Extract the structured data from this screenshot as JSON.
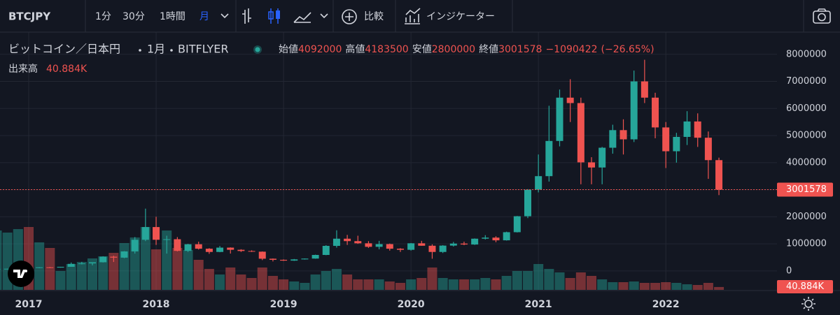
{
  "toolbar": {
    "symbol": "BTCJPY",
    "intervals": [
      "1分",
      "30分",
      "1時間",
      "月"
    ],
    "compare": "比較",
    "indicators": "インジケーター"
  },
  "chart_data": {
    "type": "candlestick",
    "symbol_name": "ビットコイン／日本円",
    "interval": "1月",
    "exchange": "BITFLYER",
    "ohlc_labels": [
      "始値",
      "高値",
      "安値",
      "終値"
    ],
    "change": "−1090422",
    "change_pct": "(−26.65%)",
    "categories": [
      null,
      null,
      null,
      "2017",
      null,
      null,
      null,
      null,
      null,
      null,
      null,
      null,
      null,
      null,
      null,
      "2018",
      null,
      null,
      null,
      null,
      null,
      null,
      null,
      null,
      null,
      null,
      null,
      "2019",
      null,
      null,
      null,
      null,
      null,
      null,
      null,
      null,
      null,
      null,
      null,
      "2020",
      null,
      null,
      null,
      null,
      null,
      null,
      null,
      null,
      null,
      null,
      null,
      "2021",
      null,
      null,
      null,
      null,
      null,
      null,
      null,
      null,
      null,
      null,
      null,
      "2022",
      null,
      null,
      null,
      null,
      null
    ],
    "open": [
      64000,
      75000,
      80000,
      110000,
      108000,
      134000,
      122000,
      152000,
      260000,
      277000,
      320000,
      525000,
      490000,
      720000,
      1150000,
      1620000,
      1150000,
      1170000,
      740000,
      985000,
      820000,
      700000,
      860000,
      780000,
      735000,
      710000,
      450000,
      410000,
      380000,
      425000,
      455000,
      590000,
      925000,
      1190000,
      1100000,
      1020000,
      890000,
      990000,
      820000,
      780000,
      1020000,
      930000,
      700000,
      935000,
      1010000,
      975000,
      1190000,
      1230000,
      1130000,
      1430000,
      2020000,
      3000000,
      3500000,
      4800000,
      6400000,
      6200000,
      4010000,
      3820000,
      4550000,
      5200000,
      4860000,
      7000000,
      6400000,
      5300000,
      4420000,
      4950000,
      5520000,
      4920000,
      4092000
    ],
    "high": [
      76000,
      82000,
      115000,
      130000,
      135000,
      145000,
      153000,
      310000,
      335000,
      320000,
      540000,
      560000,
      730000,
      1250000,
      2300000,
      2000000,
      1300000,
      1250000,
      1000000,
      1080000,
      840000,
      920000,
      870000,
      800000,
      760000,
      720000,
      460000,
      425000,
      440000,
      460000,
      600000,
      950000,
      1500000,
      1330000,
      1300000,
      1100000,
      1110000,
      1010000,
      840000,
      1030000,
      1110000,
      980000,
      950000,
      1070000,
      1080000,
      1200000,
      1320000,
      1280000,
      1450000,
      2030000,
      3020000,
      4300000,
      6100000,
      6700000,
      7080000,
      6400000,
      4200000,
      4580000,
      5400000,
      5600000,
      7400000,
      7800000,
      6580000,
      5500000,
      5100000,
      5900000,
      5820000,
      5150000,
      4183500
    ],
    "low": [
      63000,
      72000,
      79000,
      85000,
      103000,
      105000,
      120000,
      150000,
      240000,
      205000,
      310000,
      330000,
      470000,
      640000,
      1100000,
      960000,
      640000,
      720000,
      700000,
      790000,
      630000,
      690000,
      640000,
      700000,
      700000,
      400000,
      350000,
      370000,
      370000,
      420000,
      450000,
      580000,
      860000,
      960000,
      1000000,
      850000,
      800000,
      750000,
      700000,
      750000,
      930000,
      450000,
      660000,
      900000,
      950000,
      960000,
      1160000,
      1060000,
      1120000,
      1420000,
      1950000,
      2900000,
      3300000,
      4600000,
      5500000,
      3200000,
      3200000,
      3200000,
      4330000,
      4300000,
      4760000,
      6200000,
      4900000,
      3800000,
      4000000,
      4650000,
      4580000,
      3400000,
      2800000
    ],
    "close": [
      75000,
      80000,
      110000,
      108000,
      134000,
      122000,
      152000,
      260000,
      277000,
      320000,
      525000,
      490000,
      720000,
      1150000,
      1620000,
      1150000,
      1170000,
      740000,
      985000,
      820000,
      700000,
      860000,
      780000,
      735000,
      710000,
      450000,
      410000,
      380000,
      425000,
      455000,
      590000,
      925000,
      1190000,
      1100000,
      1020000,
      890000,
      990000,
      820000,
      780000,
      1020000,
      930000,
      700000,
      935000,
      1010000,
      975000,
      1190000,
      1230000,
      1130000,
      1430000,
      2020000,
      3000000,
      3500000,
      4800000,
      6400000,
      6200000,
      4010000,
      3820000,
      4550000,
      5200000,
      4860000,
      7000000,
      6400000,
      5300000,
      4420000,
      4950000,
      5520000,
      4920000,
      4092000,
      3001578
    ],
    "volume": {
      "name": "出来高",
      "last_label": "40.884K",
      "values": [
        850000,
        820000,
        870000,
        900000,
        680000,
        600000,
        270000,
        370000,
        400000,
        450000,
        480000,
        530000,
        670000,
        750000,
        900000,
        580000,
        850000,
        600000,
        570000,
        430000,
        300000,
        220000,
        320000,
        220000,
        170000,
        320000,
        200000,
        150000,
        120000,
        100000,
        220000,
        270000,
        300000,
        220000,
        150000,
        150000,
        150000,
        120000,
        100000,
        150000,
        170000,
        320000,
        170000,
        150000,
        150000,
        150000,
        170000,
        150000,
        200000,
        270000,
        270000,
        370000,
        300000,
        250000,
        170000,
        250000,
        200000,
        150000,
        110000,
        110000,
        120000,
        100000,
        100000,
        110000,
        100000,
        80000,
        70000,
        100000,
        40884
      ]
    },
    "ylim": [
      -700000,
      8820000
    ],
    "yticks": [
      0,
      1000000,
      2000000,
      3000000,
      4000000,
      5000000,
      6000000,
      7000000,
      8000000
    ],
    "grid": true,
    "up_color": "#26a69a",
    "down_color": "#ef5350"
  }
}
